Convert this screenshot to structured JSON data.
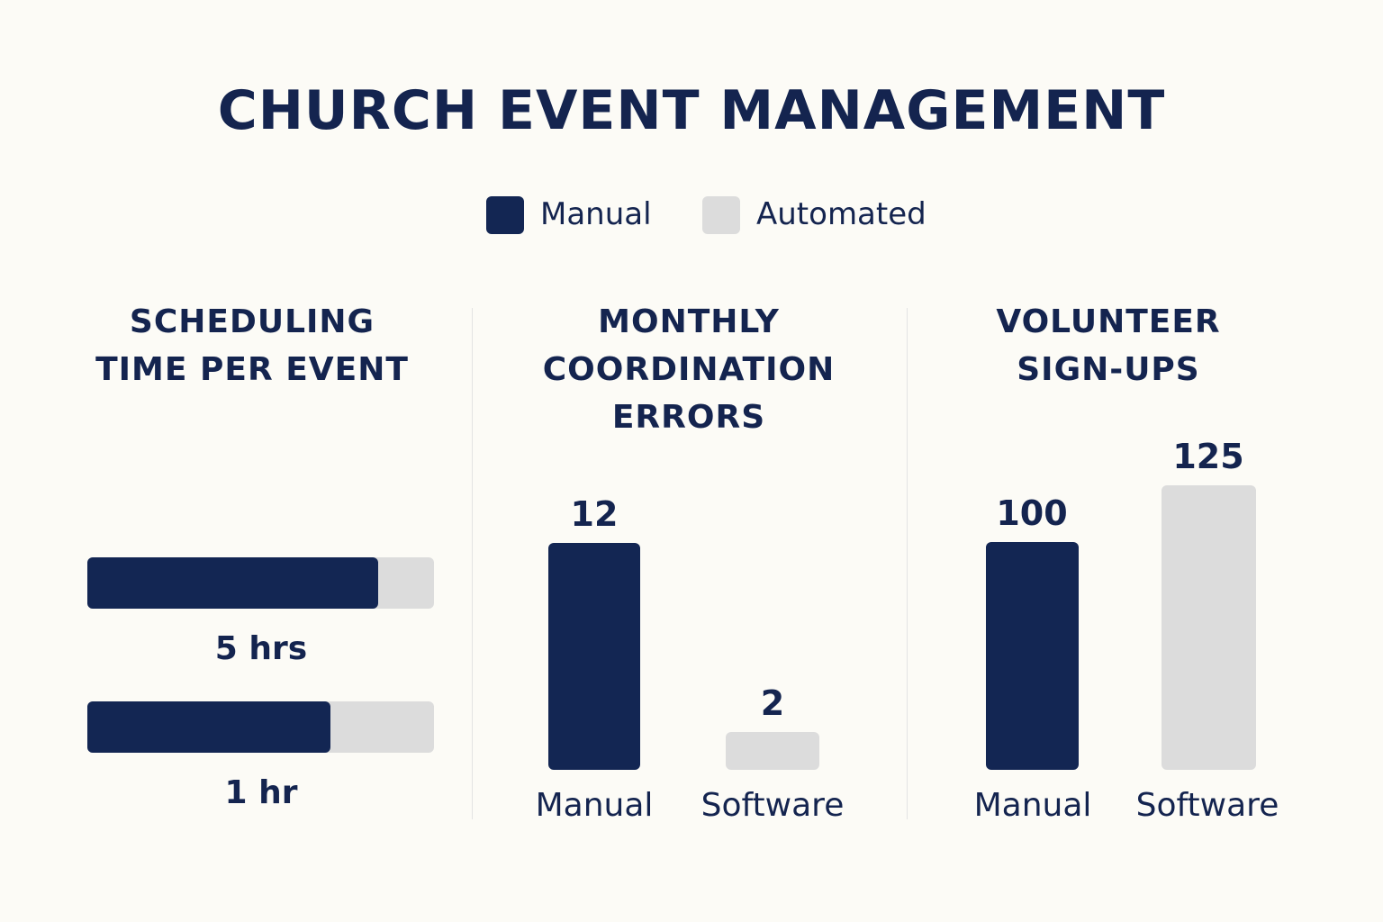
{
  "title": "CHURCH EVENT MANAGEMENT",
  "colors": {
    "manual": "#132653",
    "automated": "#dcdcdc",
    "text": "#14244f",
    "background": "#fcfbf6"
  },
  "legend": {
    "manual": "Manual",
    "automated": "Automated"
  },
  "chart_data": [
    {
      "type": "bar",
      "orientation": "horizontal",
      "title_lines": [
        "SCHEDULING",
        "TIME PER EVENT"
      ],
      "bars": [
        {
          "label": "5 hrs",
          "manual_fill": 0.84
        },
        {
          "label": "1 hr",
          "manual_fill": 0.7
        }
      ]
    },
    {
      "type": "bar",
      "title_lines": [
        "MONTHLY",
        "COORDINATION",
        "ERRORS"
      ],
      "categories": [
        "Manual",
        "Software"
      ],
      "values": [
        12,
        2
      ],
      "value_labels": [
        "12",
        "2"
      ]
    },
    {
      "type": "bar",
      "title_lines": [
        "VOLUNTEER",
        "SIGN-UPS"
      ],
      "categories": [
        "Manual",
        "Software"
      ],
      "values": [
        100,
        125
      ],
      "value_labels": [
        "100",
        "125"
      ]
    }
  ]
}
